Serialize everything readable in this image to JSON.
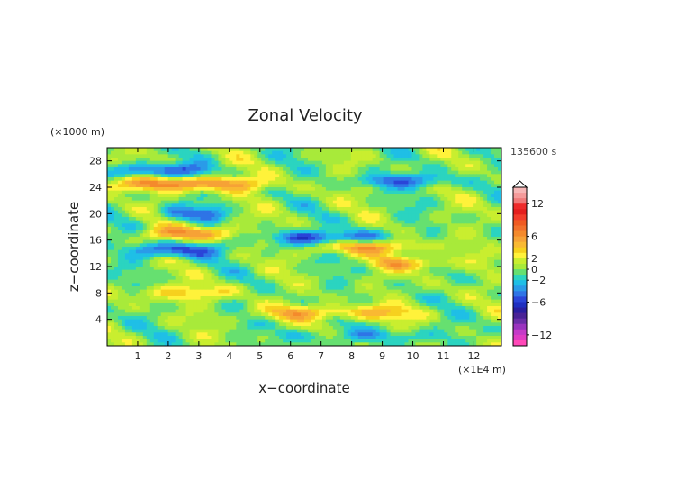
{
  "chart_data": {
    "type": "heatmap",
    "title": "Zonal Velocity",
    "xlabel": "x−coordinate",
    "ylabel": "z−coordinate",
    "x_unit": "(×1E4 m)",
    "y_unit": "(×1000 m)",
    "time_label": "135600 s",
    "xlim": [
      0,
      12.9
    ],
    "ylim": [
      0,
      30
    ],
    "x_ticks": [
      1,
      2,
      3,
      4,
      5,
      6,
      7,
      8,
      9,
      10,
      11,
      12
    ],
    "x_tick_labels": [
      "1",
      "2",
      "3",
      "4",
      "5",
      "6",
      "7",
      "8",
      "9",
      "10",
      "11",
      "12"
    ],
    "y_ticks": [
      4,
      8,
      12,
      16,
      20,
      24,
      28
    ],
    "y_tick_labels": [
      "4",
      "8",
      "12",
      "16",
      "20",
      "24",
      "28"
    ],
    "grid": false,
    "colorbar": {
      "levels": [
        14,
        13,
        12,
        11,
        10,
        9,
        8,
        7,
        6,
        5,
        4,
        3,
        2,
        1,
        0,
        -1,
        -2,
        -3,
        -4,
        -5,
        -6,
        -7,
        -8,
        -9,
        -10,
        -11,
        -12,
        -13,
        -14
      ],
      "colors": [
        "#f7b6b6",
        "#f59a9a",
        "#f07a7a",
        "#ee2b2b",
        "#e41e1e",
        "#f23c2b",
        "#f05a22",
        "#f2702c",
        "#f48a2c",
        "#f6a236",
        "#f9b932",
        "#f6d11e",
        "#fff23a",
        "#c9ee2f",
        "#a8ea3a",
        "#66e070",
        "#2bd4c0",
        "#1fbfe6",
        "#2a9be8",
        "#2e74e6",
        "#2a45d8",
        "#1f2fc0",
        "#2a1fa0",
        "#4a2396",
        "#6a2ea8",
        "#9a34bf",
        "#c43ac8",
        "#e03cc4",
        "#ff48b8"
      ],
      "tick_labels": [
        "12",
        "6",
        "2",
        "0",
        "−2",
        "−6",
        "−12"
      ],
      "tick_values": [
        12,
        6,
        2,
        0,
        -2,
        -6,
        -12
      ]
    },
    "bands": [
      {
        "z": 28,
        "value": 0,
        "note": "top band mostly green/yellow"
      },
      {
        "z": 26.5,
        "value": -5,
        "x_range": [
          0.5,
          3
        ]
      },
      {
        "z": 24.5,
        "value": 6,
        "x_range": [
          0,
          5
        ]
      },
      {
        "z": 25,
        "value": -4,
        "x_range": [
          8.5,
          11
        ]
      },
      {
        "z": 20,
        "value": -4,
        "x_range": [
          2,
          3.5
        ]
      },
      {
        "z": 17,
        "value": 5,
        "x_range": [
          1.5,
          4
        ]
      },
      {
        "z": 16.3,
        "value": -5,
        "x_range": [
          5.5,
          9
        ]
      },
      {
        "z": 14.5,
        "value": -5,
        "x_range": [
          1,
          3.5
        ]
      },
      {
        "z": 15,
        "value": 5,
        "x_range": [
          7,
          10
        ]
      },
      {
        "z": 12.5,
        "value": 4,
        "x_range": [
          9,
          11
        ]
      },
      {
        "z": 8,
        "value": 3,
        "x_range": [
          1,
          4
        ]
      },
      {
        "z": 5,
        "value": 4,
        "x_range": [
          5,
          10
        ]
      },
      {
        "z": 1.5,
        "value": -2,
        "x_range": [
          6,
          11
        ]
      }
    ]
  }
}
